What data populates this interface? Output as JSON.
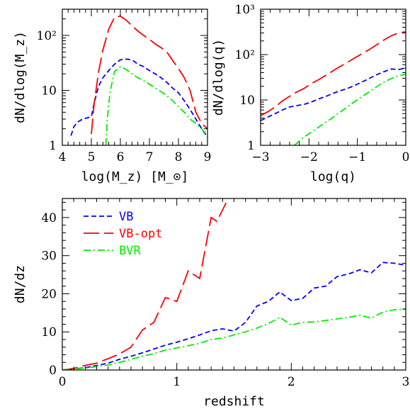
{
  "chart_data": [
    {
      "type": "line",
      "panel": "top-left",
      "xlabel": "log(M_z) [M_⊙]",
      "ylabel": "dN/dlog(M_z)",
      "xlim": [
        4,
        9
      ],
      "ylim": [
        1,
        300
      ],
      "yscale": "log",
      "xticks": [
        "4",
        "5",
        "6",
        "7",
        "8",
        "9"
      ],
      "yticks": [
        "1",
        "10",
        "10²"
      ],
      "series": [
        {
          "name": "VB",
          "color": "#0000ff",
          "dash": "short-dash",
          "x": [
            4.3,
            4.4,
            4.55,
            4.7,
            4.9,
            5.0,
            5.1,
            5.25,
            5.4,
            5.6,
            5.8,
            6.0,
            6.2,
            6.4,
            6.6,
            6.8,
            7.0,
            7.2,
            7.4,
            7.6,
            7.8,
            8.0,
            8.2,
            8.4,
            8.6,
            8.8,
            9.0
          ],
          "y": [
            1.5,
            2.2,
            2.7,
            3.0,
            3.2,
            3.3,
            6,
            12,
            17,
            23,
            30,
            36,
            37,
            36,
            30,
            27,
            23,
            20,
            17,
            14,
            11,
            9,
            6.5,
            4.5,
            3.0,
            2.0,
            1.4
          ]
        },
        {
          "name": "VB-opt",
          "color": "#ff0000",
          "dash": "long-dash",
          "x": [
            5.0,
            5.1,
            5.25,
            5.4,
            5.6,
            5.8,
            6.0,
            6.2,
            6.4,
            6.6,
            6.8,
            7.0,
            7.2,
            7.4,
            7.6,
            7.8,
            8.0,
            8.2,
            8.4,
            8.6,
            8.8,
            9.0
          ],
          "y": [
            1.6,
            6,
            22,
            55,
            130,
            215,
            225,
            190,
            150,
            120,
            100,
            85,
            70,
            60,
            50,
            35,
            25,
            17,
            10,
            4,
            2.5,
            2.0
          ]
        },
        {
          "name": "BVR",
          "color": "#00ee00",
          "dash": "dash-dot",
          "x": [
            5.5,
            5.55,
            5.65,
            5.8,
            6.0,
            6.2,
            6.4,
            6.6,
            6.8,
            7.0,
            7.2,
            7.4,
            7.6,
            7.8,
            8.0,
            8.2,
            8.4,
            8.6,
            8.8,
            9.0
          ],
          "y": [
            1.0,
            3,
            10,
            22,
            27,
            24,
            20,
            17,
            15,
            13,
            11,
            9.5,
            8,
            6.5,
            5,
            4,
            3,
            2.5,
            2.0,
            1.5
          ]
        }
      ]
    },
    {
      "type": "line",
      "panel": "top-right",
      "xlabel": "log(q)",
      "ylabel": "dN/dlog(q)",
      "xlim": [
        -3,
        0
      ],
      "ylim": [
        1,
        1000
      ],
      "yscale": "log",
      "xticks": [
        "−3",
        "−2",
        "−1",
        "0"
      ],
      "yticks": [
        "1",
        "10",
        "10²",
        "10³"
      ],
      "series": [
        {
          "name": "VB",
          "color": "#0000ff",
          "dash": "short-dash",
          "x": [
            -3.0,
            -2.85,
            -2.7,
            -2.55,
            -2.4,
            -2.25,
            -2.1,
            -1.95,
            -1.8,
            -1.65,
            -1.5,
            -1.35,
            -1.2,
            -1.05,
            -0.9,
            -0.75,
            -0.6,
            -0.45,
            -0.3,
            -0.15,
            0.0
          ],
          "y": [
            3.5,
            4.2,
            5.0,
            6.0,
            7.0,
            7.5,
            8.0,
            9.0,
            10.5,
            12,
            14,
            16,
            18,
            21,
            25,
            30,
            36,
            42,
            48,
            47,
            50
          ]
        },
        {
          "name": "VB-opt",
          "color": "#ff0000",
          "dash": "long-dash",
          "x": [
            -3.0,
            -2.85,
            -2.7,
            -2.55,
            -2.4,
            -2.25,
            -2.1,
            -1.95,
            -1.8,
            -1.65,
            -1.5,
            -1.35,
            -1.2,
            -1.05,
            -0.9,
            -0.75,
            -0.6,
            -0.45,
            -0.3,
            -0.15,
            0.0
          ],
          "y": [
            4.5,
            5.5,
            7.0,
            9.5,
            12,
            15,
            18,
            23,
            28,
            35,
            44,
            55,
            68,
            85,
            105,
            130,
            165,
            210,
            260,
            300,
            320
          ]
        },
        {
          "name": "BVR",
          "color": "#00ee00",
          "dash": "dash-dot",
          "x": [
            -2.3,
            -2.15,
            -2.0,
            -1.85,
            -1.7,
            -1.55,
            -1.4,
            -1.25,
            -1.1,
            -0.95,
            -0.8,
            -0.65,
            -0.5,
            -0.35,
            -0.2,
            -0.05,
            0.0
          ],
          "y": [
            1.0,
            1.4,
            1.8,
            2.3,
            3.0,
            3.8,
            5.0,
            6.5,
            8.5,
            11,
            14,
            18,
            23,
            28,
            33,
            36,
            37
          ]
        }
      ]
    },
    {
      "type": "line",
      "panel": "bottom",
      "xlabel": "redshift",
      "ylabel": "dN/dz",
      "xlim": [
        0,
        3
      ],
      "ylim": [
        0,
        45
      ],
      "xticks": [
        "0",
        "1",
        "2",
        "3"
      ],
      "yticks": [
        "0",
        "10",
        "20",
        "30",
        "40"
      ],
      "legend_position": "top-left",
      "series": [
        {
          "name": "VB",
          "color": "#0000ff",
          "dash": "short-dash",
          "x": [
            0.0,
            0.1,
            0.2,
            0.3,
            0.4,
            0.5,
            0.6,
            0.7,
            0.8,
            0.9,
            1.0,
            1.1,
            1.2,
            1.3,
            1.4,
            1.5,
            1.6,
            1.7,
            1.8,
            1.9,
            2.0,
            2.1,
            2.2,
            2.3,
            2.4,
            2.5,
            2.6,
            2.7,
            2.8,
            2.9,
            3.0
          ],
          "y": [
            0,
            0.3,
            0.6,
            1.2,
            1.8,
            2.8,
            3.6,
            4.5,
            5.5,
            6.5,
            7.3,
            8.2,
            9.2,
            10.3,
            10.8,
            10.2,
            12.5,
            16.8,
            18.0,
            20.5,
            18.2,
            18.8,
            21.5,
            22.0,
            24.5,
            25.2,
            26.3,
            25.5,
            28.2,
            28.0,
            27.5
          ]
        },
        {
          "name": "VB-opt",
          "color": "#ff0000",
          "dash": "long-dash",
          "x": [
            0.0,
            0.1,
            0.2,
            0.3,
            0.4,
            0.5,
            0.6,
            0.7,
            0.8,
            0.9,
            1.0,
            1.1,
            1.2,
            1.3,
            1.35,
            1.4,
            1.45
          ],
          "y": [
            0,
            0.4,
            1.2,
            1.8,
            3.0,
            4.2,
            6.0,
            10.5,
            12.5,
            19.0,
            18.0,
            26.0,
            24.0,
            40.0,
            39.0,
            42.0,
            45.0
          ]
        },
        {
          "name": "BVR",
          "color": "#00ee00",
          "dash": "dash-dot",
          "x": [
            0.0,
            0.1,
            0.2,
            0.3,
            0.4,
            0.5,
            0.6,
            0.7,
            0.8,
            0.9,
            1.0,
            1.1,
            1.2,
            1.3,
            1.4,
            1.5,
            1.6,
            1.7,
            1.8,
            1.9,
            2.0,
            2.1,
            2.2,
            2.3,
            2.4,
            2.5,
            2.6,
            2.7,
            2.8,
            2.9,
            3.0
          ],
          "y": [
            0,
            0.2,
            0.5,
            0.9,
            1.3,
            2.0,
            2.8,
            3.6,
            4.3,
            5.2,
            5.8,
            6.4,
            7.0,
            8.0,
            8.4,
            9.2,
            10.0,
            11.0,
            12.2,
            13.8,
            11.8,
            12.5,
            12.6,
            13.0,
            13.4,
            13.8,
            14.4,
            13.6,
            15.2,
            15.8,
            16.0
          ]
        }
      ]
    }
  ]
}
